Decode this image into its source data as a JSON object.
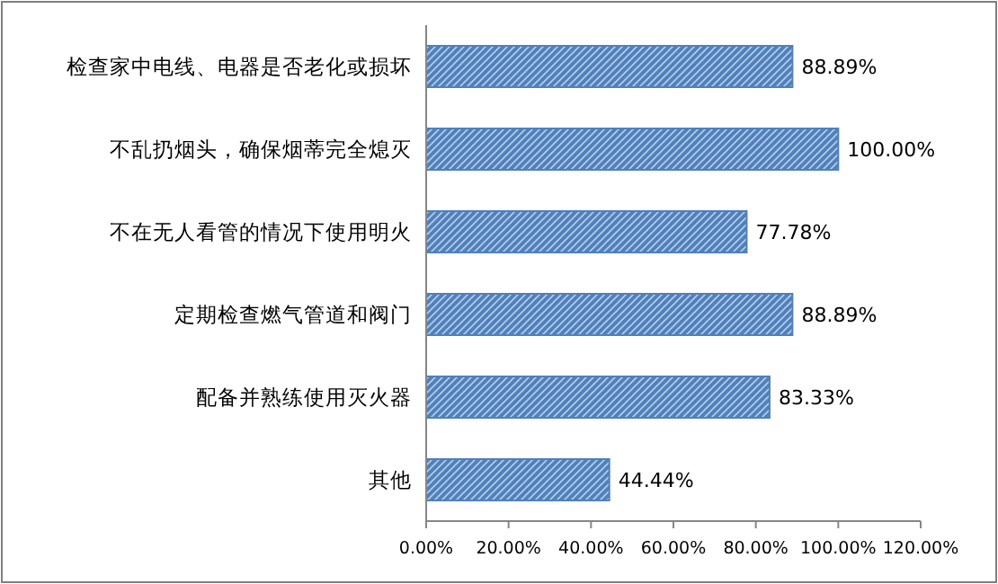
{
  "chart_data": {
    "type": "bar",
    "orientation": "horizontal",
    "categories": [
      "检查家中电线、电器是否老化或损坏",
      "不乱扔烟头，确保烟蒂完全熄灭",
      "不在无人看管的情况下使用明火",
      "定期检查燃气管道和阀门",
      "配备并熟练使用灭火器",
      "其他"
    ],
    "values": [
      88.89,
      100,
      77.78,
      88.89,
      83.33,
      44.44
    ],
    "value_labels": [
      "88.89%",
      "100.00%",
      "77.78%",
      "88.89%",
      "83.33%",
      "44.44%"
    ],
    "color": "#4f81bd",
    "xlim": [
      0,
      120
    ],
    "xticks": [
      {
        "value": 0,
        "label": "0.00%"
      },
      {
        "value": 20,
        "label": "20.00%"
      },
      {
        "value": 40,
        "label": "40.00%"
      },
      {
        "value": 60,
        "label": "60.00%"
      },
      {
        "value": 80,
        "label": "80.00%"
      },
      {
        "value": 100,
        "label": "100.00%"
      },
      {
        "value": 120,
        "label": "120.00%"
      }
    ],
    "grid": false
  }
}
